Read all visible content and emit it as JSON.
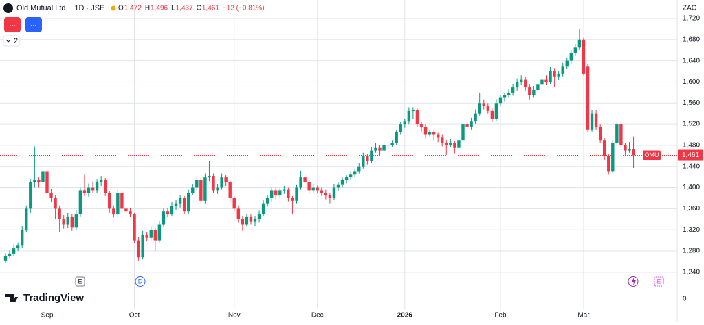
{
  "chart_data": {
    "type": "candlestick",
    "symbol_title": "Old Mutual Ltd. · 1D · JSE",
    "legend_fields": [
      {
        "key": "O",
        "value": "1,472"
      },
      {
        "key": "H",
        "value": "1,496"
      },
      {
        "key": "L",
        "value": "1,437"
      },
      {
        "key": "C",
        "value": "1,461"
      }
    ],
    "change": "−12 (−0.81%)",
    "currency": "ZAC",
    "buttons": [
      "...",
      "..."
    ],
    "collapse_count": "2",
    "last_price_symbol": "OMU",
    "last_price_label": "1,461",
    "events": [
      "E",
      "D",
      "E"
    ],
    "brand": "TradingView",
    "up_color": "#089981",
    "down_color": "#f23645",
    "grid": true,
    "ylim": [
      1171,
      1755
    ],
    "yticks": [
      {
        "value": 1240,
        "label": "1,240"
      },
      {
        "value": 1280,
        "label": "1,280"
      },
      {
        "value": 1320,
        "label": "1,320"
      },
      {
        "value": 1360,
        "label": "1,360"
      },
      {
        "value": 1400,
        "label": "1,400"
      },
      {
        "value": 1440,
        "label": "1,440"
      },
      {
        "value": 1480,
        "label": "1,480"
      },
      {
        "value": 1520,
        "label": "1,520"
      },
      {
        "value": 1560,
        "label": "1,560"
      },
      {
        "value": 1600,
        "label": "1,600"
      },
      {
        "value": 1640,
        "label": "1,640"
      },
      {
        "value": 1680,
        "label": "1,680"
      },
      {
        "value": 1720,
        "label": "1,720"
      }
    ],
    "lower_scale_ticks": [
      0
    ],
    "categories": [
      null,
      null,
      null,
      null,
      null,
      null,
      null,
      null,
      null,
      null,
      "Sep",
      null,
      null,
      null,
      null,
      null,
      null,
      null,
      null,
      null,
      null,
      null,
      null,
      null,
      null,
      null,
      null,
      null,
      null,
      null,
      null,
      "Oct",
      null,
      null,
      null,
      null,
      null,
      null,
      null,
      null,
      null,
      null,
      null,
      null,
      null,
      null,
      null,
      null,
      null,
      null,
      null,
      null,
      null,
      null,
      null,
      "Nov",
      null,
      null,
      null,
      null,
      null,
      null,
      null,
      null,
      null,
      null,
      null,
      null,
      null,
      null,
      null,
      null,
      null,
      null,
      null,
      "Dec",
      null,
      null,
      null,
      null,
      null,
      null,
      null,
      null,
      null,
      null,
      null,
      null,
      null,
      null,
      null,
      null,
      null,
      null,
      null,
      null,
      "2026",
      null,
      null,
      null,
      null,
      null,
      null,
      null,
      null,
      null,
      null,
      null,
      null,
      null,
      null,
      null,
      null,
      null,
      null,
      null,
      null,
      null,
      null,
      "Feb",
      null,
      null,
      null,
      null,
      null,
      null,
      null,
      null,
      null,
      null,
      null,
      null,
      null,
      null,
      null,
      null,
      null,
      null,
      null,
      "Mar",
      null,
      null,
      null,
      null,
      null,
      null,
      null,
      null,
      null,
      null,
      null,
      null
    ],
    "candles": [
      [
        1262,
        1276,
        1258,
        1270
      ],
      [
        1270,
        1282,
        1266,
        1275
      ],
      [
        1275,
        1292,
        1270,
        1285
      ],
      [
        1285,
        1296,
        1280,
        1290
      ],
      [
        1290,
        1328,
        1286,
        1320
      ],
      [
        1320,
        1366,
        1315,
        1360
      ],
      [
        1360,
        1416,
        1352,
        1410
      ],
      [
        1410,
        1478,
        1400,
        1415
      ],
      [
        1415,
        1420,
        1400,
        1410
      ],
      [
        1410,
        1436,
        1402,
        1430
      ],
      [
        1430,
        1434,
        1385,
        1390
      ],
      [
        1390,
        1398,
        1372,
        1380
      ],
      [
        1380,
        1386,
        1340,
        1360
      ],
      [
        1360,
        1366,
        1315,
        1340
      ],
      [
        1340,
        1348,
        1322,
        1330
      ],
      [
        1330,
        1352,
        1324,
        1345
      ],
      [
        1345,
        1350,
        1318,
        1325
      ],
      [
        1325,
        1358,
        1320,
        1350
      ],
      [
        1350,
        1400,
        1345,
        1395
      ],
      [
        1395,
        1425,
        1384,
        1390
      ],
      [
        1390,
        1408,
        1382,
        1400
      ],
      [
        1400,
        1412,
        1390,
        1395
      ],
      [
        1395,
        1416,
        1390,
        1410
      ],
      [
        1410,
        1422,
        1402,
        1415
      ],
      [
        1415,
        1418,
        1384,
        1390
      ],
      [
        1390,
        1394,
        1352,
        1360
      ],
      [
        1360,
        1366,
        1343,
        1350
      ],
      [
        1350,
        1398,
        1345,
        1390
      ],
      [
        1390,
        1395,
        1352,
        1360
      ],
      [
        1360,
        1368,
        1348,
        1355
      ],
      [
        1355,
        1362,
        1344,
        1350
      ],
      [
        1350,
        1352,
        1295,
        1300
      ],
      [
        1300,
        1306,
        1262,
        1268
      ],
      [
        1268,
        1318,
        1264,
        1310
      ],
      [
        1310,
        1316,
        1298,
        1305
      ],
      [
        1305,
        1326,
        1300,
        1320
      ],
      [
        1320,
        1324,
        1280,
        1300
      ],
      [
        1300,
        1336,
        1296,
        1330
      ],
      [
        1330,
        1360,
        1326,
        1355
      ],
      [
        1355,
        1362,
        1344,
        1350
      ],
      [
        1350,
        1372,
        1346,
        1365
      ],
      [
        1365,
        1376,
        1358,
        1370
      ],
      [
        1370,
        1386,
        1362,
        1380
      ],
      [
        1380,
        1384,
        1350,
        1355
      ],
      [
        1355,
        1396,
        1350,
        1390
      ],
      [
        1390,
        1406,
        1386,
        1400
      ],
      [
        1400,
        1420,
        1395,
        1415
      ],
      [
        1415,
        1420,
        1370,
        1375
      ],
      [
        1375,
        1426,
        1370,
        1420
      ],
      [
        1420,
        1450,
        1412,
        1422
      ],
      [
        1422,
        1426,
        1390,
        1395
      ],
      [
        1395,
        1406,
        1388,
        1400
      ],
      [
        1400,
        1426,
        1396,
        1420
      ],
      [
        1420,
        1424,
        1402,
        1410
      ],
      [
        1410,
        1414,
        1374,
        1380
      ],
      [
        1380,
        1384,
        1355,
        1360
      ],
      [
        1360,
        1366,
        1334,
        1340
      ],
      [
        1340,
        1346,
        1318,
        1330
      ],
      [
        1330,
        1350,
        1326,
        1345
      ],
      [
        1345,
        1350,
        1330,
        1335
      ],
      [
        1335,
        1346,
        1328,
        1340
      ],
      [
        1340,
        1356,
        1334,
        1350
      ],
      [
        1350,
        1376,
        1346,
        1370
      ],
      [
        1370,
        1386,
        1364,
        1380
      ],
      [
        1380,
        1400,
        1374,
        1395
      ],
      [
        1395,
        1400,
        1378,
        1385
      ],
      [
        1385,
        1400,
        1380,
        1395
      ],
      [
        1395,
        1402,
        1388,
        1396
      ],
      [
        1396,
        1400,
        1374,
        1380
      ],
      [
        1380,
        1384,
        1350,
        1375
      ],
      [
        1375,
        1405,
        1370,
        1400
      ],
      [
        1400,
        1432,
        1396,
        1420
      ],
      [
        1420,
        1426,
        1404,
        1410
      ],
      [
        1410,
        1414,
        1388,
        1395
      ],
      [
        1395,
        1406,
        1390,
        1400
      ],
      [
        1400,
        1404,
        1390,
        1395
      ],
      [
        1395,
        1400,
        1384,
        1390
      ],
      [
        1390,
        1396,
        1378,
        1385
      ],
      [
        1385,
        1390,
        1370,
        1380
      ],
      [
        1380,
        1406,
        1376,
        1400
      ],
      [
        1400,
        1410,
        1394,
        1405
      ],
      [
        1405,
        1420,
        1400,
        1415
      ],
      [
        1415,
        1424,
        1408,
        1420
      ],
      [
        1420,
        1430,
        1414,
        1425
      ],
      [
        1425,
        1436,
        1420,
        1430
      ],
      [
        1430,
        1446,
        1426,
        1440
      ],
      [
        1440,
        1466,
        1436,
        1460
      ],
      [
        1460,
        1464,
        1444,
        1450
      ],
      [
        1450,
        1476,
        1446,
        1470
      ],
      [
        1470,
        1484,
        1466,
        1475
      ],
      [
        1475,
        1480,
        1460,
        1470
      ],
      [
        1470,
        1486,
        1466,
        1480
      ],
      [
        1480,
        1486,
        1472,
        1481
      ],
      [
        1481,
        1490,
        1476,
        1485
      ],
      [
        1485,
        1510,
        1480,
        1505
      ],
      [
        1505,
        1524,
        1500,
        1520
      ],
      [
        1520,
        1530,
        1514,
        1525
      ],
      [
        1525,
        1552,
        1520,
        1545
      ],
      [
        1545,
        1552,
        1530,
        1546
      ],
      [
        1546,
        1550,
        1515,
        1520
      ],
      [
        1520,
        1524,
        1505,
        1515
      ],
      [
        1515,
        1520,
        1494,
        1500
      ],
      [
        1500,
        1510,
        1496,
        1505
      ],
      [
        1505,
        1508,
        1490,
        1500
      ],
      [
        1500,
        1504,
        1486,
        1495
      ],
      [
        1495,
        1500,
        1478,
        1485
      ],
      [
        1485,
        1490,
        1462,
        1480
      ],
      [
        1480,
        1492,
        1476,
        1485
      ],
      [
        1485,
        1488,
        1465,
        1475
      ],
      [
        1475,
        1496,
        1470,
        1490
      ],
      [
        1490,
        1526,
        1486,
        1520
      ],
      [
        1520,
        1528,
        1510,
        1515
      ],
      [
        1515,
        1532,
        1510,
        1525
      ],
      [
        1525,
        1548,
        1520,
        1540
      ],
      [
        1540,
        1580,
        1536,
        1560
      ],
      [
        1560,
        1566,
        1548,
        1555
      ],
      [
        1555,
        1560,
        1540,
        1545
      ],
      [
        1545,
        1550,
        1524,
        1530
      ],
      [
        1530,
        1568,
        1526,
        1560
      ],
      [
        1560,
        1576,
        1554,
        1570
      ],
      [
        1570,
        1580,
        1562,
        1575
      ],
      [
        1575,
        1586,
        1570,
        1580
      ],
      [
        1580,
        1596,
        1574,
        1590
      ],
      [
        1590,
        1606,
        1584,
        1600
      ],
      [
        1600,
        1612,
        1594,
        1605
      ],
      [
        1605,
        1610,
        1584,
        1590
      ],
      [
        1590,
        1596,
        1566,
        1575
      ],
      [
        1575,
        1592,
        1570,
        1585
      ],
      [
        1585,
        1600,
        1580,
        1595
      ],
      [
        1595,
        1610,
        1590,
        1605
      ],
      [
        1605,
        1612,
        1594,
        1600
      ],
      [
        1600,
        1628,
        1596,
        1620
      ],
      [
        1620,
        1626,
        1590,
        1610
      ],
      [
        1610,
        1620,
        1604,
        1615
      ],
      [
        1615,
        1636,
        1610,
        1630
      ],
      [
        1630,
        1646,
        1625,
        1640
      ],
      [
        1640,
        1660,
        1634,
        1655
      ],
      [
        1655,
        1672,
        1650,
        1665
      ],
      [
        1665,
        1700,
        1660,
        1680
      ],
      [
        1680,
        1684,
        1612,
        1615
      ],
      [
        1630,
        1634,
        1506,
        1510
      ],
      [
        1510,
        1546,
        1506,
        1540
      ],
      [
        1540,
        1546,
        1510,
        1515
      ],
      [
        1515,
        1520,
        1484,
        1490
      ],
      [
        1490,
        1494,
        1452,
        1460
      ],
      [
        1460,
        1464,
        1425,
        1430
      ],
      [
        1430,
        1490,
        1426,
        1485
      ],
      [
        1485,
        1524,
        1480,
        1520
      ],
      [
        1520,
        1524,
        1476,
        1480
      ],
      [
        1480,
        1484,
        1462,
        1470
      ],
      [
        1470,
        1486,
        1466,
        1473
      ],
      [
        1472,
        1496,
        1437,
        1461
      ]
    ]
  }
}
